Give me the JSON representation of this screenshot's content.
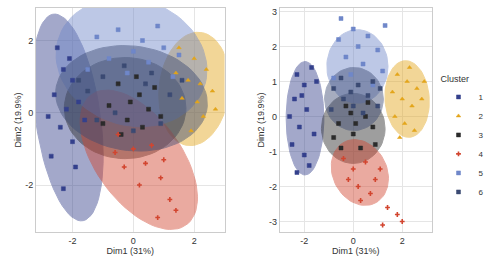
{
  "chart_data": [
    {
      "type": "scatter",
      "xlabel": "Dim1 (31%)",
      "ylabel": "Dim2 (19.9%)",
      "xlim": [
        -3.2,
        3.0
      ],
      "ylim": [
        -3.3,
        2.9
      ],
      "xticks": [
        -2,
        0,
        2
      ],
      "yticks": [
        -2,
        0,
        2
      ],
      "grid": true,
      "series": [
        {
          "name": "1",
          "color": "#34408c",
          "marker": "square",
          "x": [
            -2.5,
            -2.3,
            -2.0,
            -2.6,
            -2.2,
            -1.8,
            -2.4,
            -2.0,
            -2.7,
            -1.9,
            -2.3,
            -1.6,
            -2.1,
            -2.8
          ],
          "y": [
            1.8,
            1.2,
            0.9,
            0.5,
            0.1,
            0.3,
            -0.4,
            -0.8,
            -1.2,
            -1.5,
            -2.1,
            -0.2,
            1.5,
            -0.1
          ],
          "ellipse": {
            "center": [
              -2.15,
              -0.13
            ],
            "radii": [
              2.9,
              1.06
            ],
            "angle": 100
          }
        },
        {
          "name": "2",
          "color": "#e3a51a",
          "marker": "triangle-up",
          "x": [
            1.5,
            2.0,
            2.4,
            1.8,
            2.6,
            2.1,
            1.6,
            2.3,
            1.9,
            2.7,
            1.4,
            2.2
          ],
          "y": [
            1.8,
            1.5,
            1.2,
            0.9,
            0.6,
            0.3,
            0.4,
            -0.1,
            -0.5,
            0.1,
            1.1,
            0.8
          ],
          "ellipse": {
            "center": [
              2.0,
              0.66
            ],
            "radii": [
              1.58,
              1.15
            ],
            "angle": 80
          }
        },
        {
          "name": "3",
          "color": "#2b2b2b",
          "marker": "square",
          "x": [
            -0.5,
            0.2,
            -0.2,
            0.5,
            -0.8,
            0.1,
            -0.4,
            0.7,
            -1.0,
            0.3,
            -0.1,
            0.9
          ],
          "y": [
            0.8,
            0.5,
            -0.2,
            0.1,
            0.2,
            1.0,
            -0.6,
            0.7,
            -0.3,
            -0.4,
            0.3,
            -0.1
          ],
          "ellipse": {
            "center": [
              -0.27,
              0.13
            ],
            "radii": [
              2.0,
              1.4
            ],
            "angle": 0
          }
        },
        {
          "name": "4",
          "color": "#d2452f",
          "marker": "cross",
          "x": [
            -0.5,
            0,
            0.4,
            0.9,
            1.2,
            -0.3,
            0.6,
            0.2,
            1.4,
            0.8,
            -0.6,
            1.0
          ],
          "y": [
            -0.6,
            -1.0,
            -1.4,
            -1.8,
            -2.4,
            -1.5,
            -0.9,
            -2.0,
            -2.7,
            -2.9,
            -1.1,
            -1.3
          ],
          "ellipse": {
            "center": [
              0.18,
              -1.3
            ],
            "radii": [
              2.4,
              1.3
            ],
            "angle": -45
          }
        },
        {
          "name": "5",
          "color": "#6f87c9",
          "marker": "square",
          "x": [
            -1.2,
            -0.5,
            0.3,
            1.0,
            -0.8,
            0.5,
            1.5,
            -1.5,
            0,
            0.8,
            -0.2,
            1.3
          ],
          "y": [
            2.1,
            2.3,
            2.0,
            1.8,
            1.5,
            1.4,
            1.6,
            1.2,
            1.7,
            2.4,
            1.1,
            1.0
          ],
          "ellipse": {
            "center": [
              -0.06,
              1.4
            ],
            "radii": [
              2.5,
              1.76
            ],
            "angle": -10
          }
        },
        {
          "name": "6",
          "color": "#3b4a73",
          "marker": "square",
          "x": [
            -1.5,
            -1.0,
            -0.3,
            0.6,
            1.2,
            -1.2,
            0.9,
            -0.6,
            0.4,
            1.6,
            -1.8,
            0.0
          ],
          "y": [
            0.6,
            1.0,
            1.3,
            1.1,
            0.5,
            -0.2,
            -0.3,
            0.0,
            0.8,
            0.9,
            0.9,
            -0.5
          ],
          "ellipse": {
            "center": [
              -0.06,
              0.4
            ],
            "radii": [
              2.5,
              1.45
            ],
            "angle": -5
          }
        }
      ]
    },
    {
      "type": "scatter",
      "xlabel": "Dim1 (31%)",
      "ylabel": "Dim2 (19.9%)",
      "xlim": [
        -3.0,
        3.2
      ],
      "ylim": [
        -3.3,
        3.1
      ],
      "xticks": [
        -2,
        0,
        2
      ],
      "yticks": [
        -3,
        -2,
        -1,
        0,
        1,
        2,
        3
      ],
      "grid": true,
      "legend": "right",
      "legend_title": "Cluster",
      "series": [
        {
          "name": "1",
          "color": "#34408c",
          "marker": "square",
          "x": [
            -2.3,
            -2.0,
            -1.7,
            -2.4,
            -1.9,
            -2.2,
            -1.6,
            -2.5,
            -2.0,
            -1.8,
            -2.3,
            -2.1,
            -2.6,
            -1.5
          ],
          "y": [
            1.2,
            0.9,
            1.4,
            0.5,
            0.2,
            -0.3,
            -0.5,
            -0.8,
            -1.1,
            -1.4,
            -1.6,
            0.6,
            0.0,
            1.0
          ],
          "ellipse": {
            "center": [
              -1.97,
              -0.05
            ],
            "radii": [
              1.62,
              0.77
            ],
            "angle": 90
          }
        },
        {
          "name": "2",
          "color": "#e3a51a",
          "marker": "triangle-up",
          "x": [
            1.8,
            2.2,
            2.6,
            2.0,
            2.4,
            1.7,
            2.8,
            2.1,
            2.5,
            1.9,
            2.3,
            2.9,
            1.6
          ],
          "y": [
            1.2,
            1.0,
            0.8,
            0.5,
            0.3,
            0.0,
            0.5,
            -0.2,
            -0.4,
            -0.6,
            1.4,
            1.0,
            0.7
          ],
          "ellipse": {
            "center": [
              2.2,
              0.5
            ],
            "radii": [
              1.1,
              0.9
            ],
            "angle": 100
          }
        },
        {
          "name": "3",
          "color": "#2b2b2b",
          "marker": "square",
          "x": [
            -0.6,
            0,
            0.5,
            -0.3,
            0.8,
            -0.8,
            0.3,
            -0.1,
            0.6,
            -0.5,
            0.9,
            0.1
          ],
          "y": [
            -0.2,
            -0.5,
            0.0,
            0.3,
            -0.3,
            -0.6,
            -0.9,
            0.1,
            0.4,
            -0.9,
            -0.8,
            -0.2
          ],
          "ellipse": {
            "center": [
              0,
              -0.34
            ],
            "radii": [
              1.3,
              1.0
            ],
            "angle": 0
          }
        },
        {
          "name": "4",
          "color": "#d2452f",
          "marker": "cross",
          "x": [
            -0.4,
            0,
            0.5,
            0.9,
            0.2,
            -0.2,
            0.7,
            1.1,
            1.4,
            1.8,
            0.3,
            2.0,
            1.2
          ],
          "y": [
            -1.2,
            -1.5,
            -1.3,
            -1.8,
            -2.0,
            -1.8,
            -2.2,
            -1.5,
            -2.6,
            -2.8,
            -2.4,
            -3.0,
            -3.1
          ],
          "ellipse": {
            "center": [
              0.27,
              -1.6
            ],
            "radii": [
              1.2,
              0.9
            ],
            "angle": -20
          }
        },
        {
          "name": "5",
          "color": "#6f87c9",
          "marker": "square",
          "x": [
            -0.6,
            0,
            0.6,
            1.0,
            -0.3,
            0.4,
            1.2,
            -0.8,
            0.2,
            0.8,
            -0.1,
            1.3,
            -0.5
          ],
          "y": [
            2.2,
            2.5,
            2.3,
            1.9,
            1.7,
            1.5,
            1.3,
            1.1,
            2.0,
            0.9,
            1.2,
            2.6,
            2.8
          ],
          "ellipse": {
            "center": [
              0.17,
              1.43
            ],
            "radii": [
              1.25,
              1.05
            ],
            "angle": 0
          }
        },
        {
          "name": "6",
          "color": "#3b4a73",
          "marker": "square",
          "x": [
            -0.8,
            -0.4,
            0.2,
            0.6,
            1.0,
            -0.9,
            0.4,
            -0.1,
            0.8,
            -0.5,
            1.1,
            0.0
          ],
          "y": [
            0.8,
            0.5,
            0.9,
            0.6,
            0.3,
            0.2,
            0.1,
            0.7,
            1.0,
            1.1,
            0.8,
            0.3
          ],
          "ellipse": {
            "center": [
              0.03,
              0.5
            ],
            "radii": [
              1.2,
              0.9
            ],
            "angle": 0
          }
        }
      ]
    }
  ]
}
